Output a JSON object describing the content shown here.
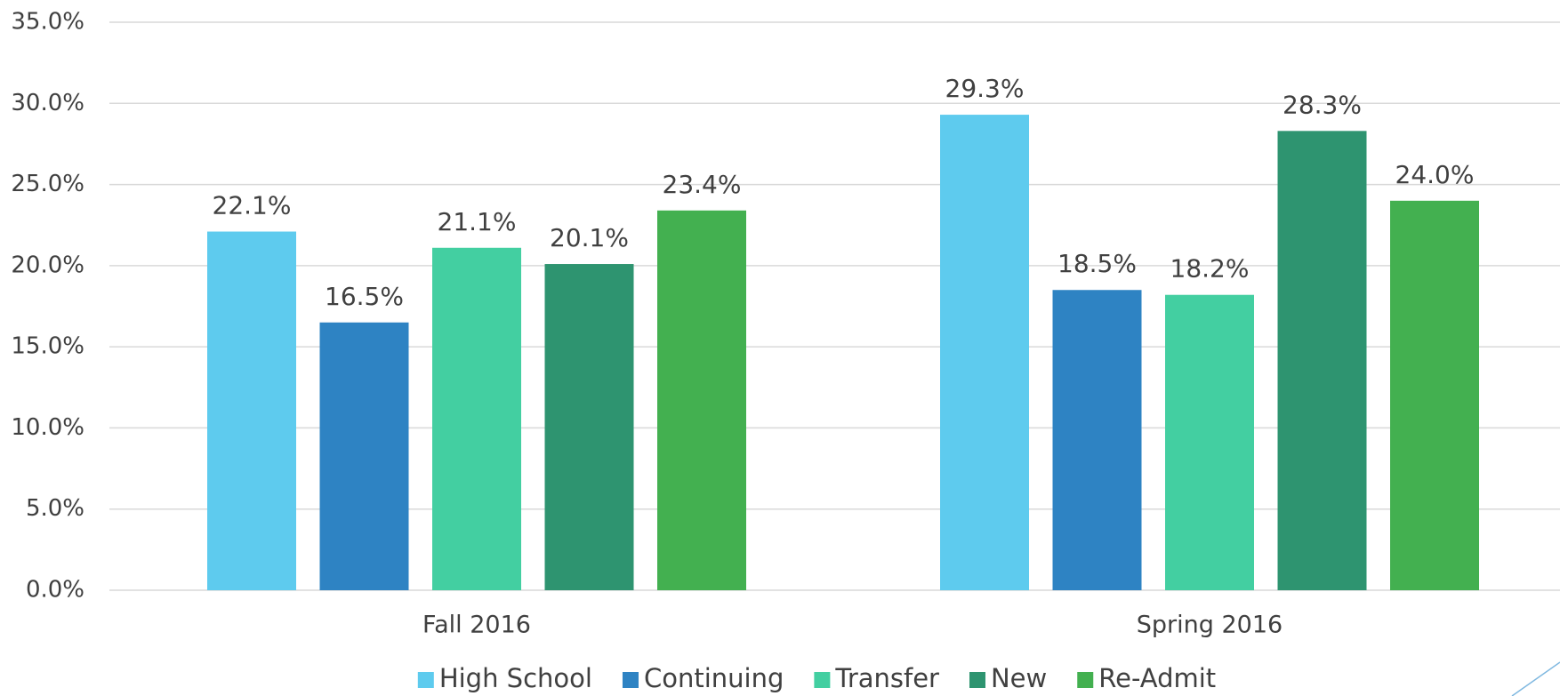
{
  "chart_data": {
    "type": "bar",
    "categories": [
      "Fall 2016",
      "Spring 2016"
    ],
    "series": [
      {
        "name": "High School",
        "color": "#5ecbee",
        "values": [
          22.1,
          29.3
        ],
        "value_labels": [
          "22.1%",
          "29.3%"
        ]
      },
      {
        "name": "Continuing",
        "color": "#2e83c3",
        "values": [
          16.5,
          18.5
        ],
        "value_labels": [
          "16.5%",
          "18.5%"
        ]
      },
      {
        "name": "Transfer",
        "color": "#43cfa1",
        "values": [
          21.1,
          18.2
        ],
        "value_labels": [
          "21.1%",
          "18.2%"
        ]
      },
      {
        "name": "New",
        "color": "#2e9470",
        "values": [
          20.1,
          28.3
        ],
        "value_labels": [
          "20.1%",
          "28.3%"
        ]
      },
      {
        "name": "Re-Admit",
        "color": "#43b050",
        "values": [
          23.4,
          24.0
        ],
        "value_labels": [
          "23.4%",
          "24.0%"
        ]
      }
    ],
    "ylim": [
      0,
      35
    ],
    "yticks": [
      {
        "value": 0,
        "label": "0.0%"
      },
      {
        "value": 5,
        "label": "5.0%"
      },
      {
        "value": 10,
        "label": "10.0%"
      },
      {
        "value": 15,
        "label": "15.0%"
      },
      {
        "value": 20,
        "label": "20.0%"
      },
      {
        "value": 25,
        "label": "25.0%"
      },
      {
        "value": 30,
        "label": "30.0%"
      },
      {
        "value": 35,
        "label": "35.0%"
      }
    ],
    "grid": true,
    "legend": "bottom"
  }
}
